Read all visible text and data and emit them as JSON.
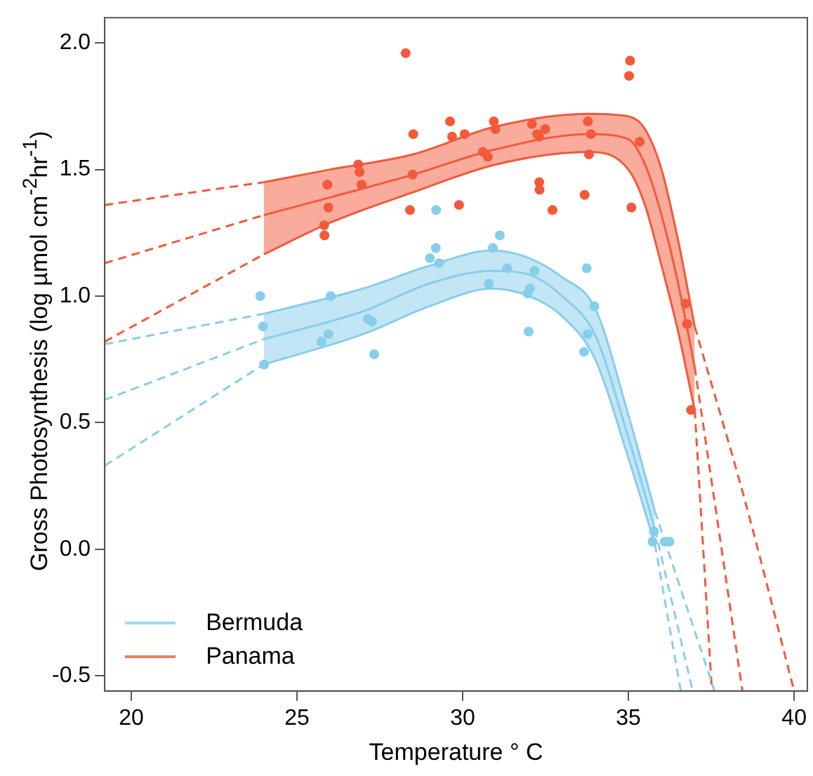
{
  "chart_data": {
    "type": "line",
    "xlabel": "Temperature ° C",
    "ylabel": "Gross Photosynthesis (log µmol cm$^{-2}$hr$^{-1}$)",
    "xlim": [
      19.2,
      40.4
    ],
    "ylim": [
      -0.56,
      2.1
    ],
    "xticks": [
      20,
      25,
      30,
      35,
      40
    ],
    "yticks": [
      -0.5,
      {
        "value": 0,
        "label": "0.0"
      },
      0.5,
      {
        "value": 1,
        "label": "1.0"
      },
      1.5,
      {
        "value": 2,
        "label": "2.0"
      }
    ],
    "grid": false,
    "legend": "bottom left",
    "series": [
      {
        "name": "Bermuda",
        "color": "#87ceeb",
        "line_style": "solid",
        "x": [
          24,
          27,
          29,
          30.9,
          32,
          33,
          34,
          35,
          35.8
        ],
        "values": [
          0.83,
          0.94,
          1.05,
          1.1,
          1.085,
          1.0,
          0.845,
          0.44,
          0.08
        ],
        "lower": [
          0.73,
          0.85,
          0.96,
          1.03,
          1.0,
          0.92,
          0.75,
          0.36,
          0.02
        ],
        "upper": [
          0.93,
          1.03,
          1.12,
          1.18,
          1.15,
          1.075,
          0.95,
          0.53,
          0.15
        ]
      },
      {
        "color": "#87ceeb",
        "line_style": "solid",
        "x": [
          24,
          27,
          29,
          30.9,
          32,
          33,
          34,
          35,
          35.8
        ],
        "values": [
          0.73,
          0.85,
          0.96,
          1.03,
          1.0,
          0.92,
          0.75,
          0.36,
          0.02
        ]
      },
      {
        "color": "#87ceeb",
        "line_style": "solid",
        "x": [
          24,
          27,
          29,
          30.9,
          32,
          33,
          34,
          35,
          35.8
        ],
        "values": [
          0.93,
          1.03,
          1.12,
          1.18,
          1.15,
          1.075,
          0.95,
          0.53,
          0.15
        ]
      },
      {
        "type": "line",
        "color": "#87ceeb",
        "line_style": "dashed",
        "x": [
          19.2,
          24
        ],
        "values": [
          0.81,
          0.93
        ]
      },
      {
        "type": "line",
        "color": "#87ceeb",
        "line_style": "dashed",
        "x": [
          19.2,
          24
        ],
        "values": [
          0.59,
          0.83
        ]
      },
      {
        "type": "line",
        "color": "#87ceeb",
        "line_style": "dashed",
        "x": [
          19.2,
          24
        ],
        "values": [
          0.33,
          0.73
        ]
      },
      {
        "type": "line",
        "color": "#87ceeb",
        "line_style": "dashed",
        "x": [
          35.8,
          37.6
        ],
        "values": [
          0.15,
          -0.56
        ]
      },
      {
        "type": "line",
        "color": "#87ceeb",
        "line_style": "dashed",
        "x": [
          35.8,
          36.94
        ],
        "values": [
          0.08,
          -0.56
        ]
      },
      {
        "type": "line",
        "color": "#87ceeb",
        "line_style": "dashed",
        "x": [
          35.8,
          36.58
        ],
        "values": [
          0.02,
          -0.56
        ]
      },
      {
        "type": "scatter",
        "color": "#87ceeb",
        "marker": "circle",
        "x": [
          23.89,
          23.98,
          24.01,
          26.02,
          25.74,
          25.95,
          27.14,
          27.26,
          27.33,
          29.2,
          29.19,
          29.01,
          29.29,
          31.12,
          30.91,
          31.34,
          32.17,
          30.79,
          32.03,
          31.96,
          31.99,
          33.74,
          33.97,
          33.77,
          33.66,
          35.77,
          35.73,
          36.1,
          36.24
        ],
        "values": [
          1.0,
          0.88,
          0.73,
          1.0,
          0.82,
          0.85,
          0.91,
          0.9,
          0.77,
          1.34,
          1.19,
          1.15,
          1.13,
          1.24,
          1.19,
          1.11,
          1.1,
          1.05,
          1.03,
          1.01,
          0.86,
          1.11,
          0.96,
          0.85,
          0.78,
          0.07,
          0.03,
          0.03,
          0.03
        ]
      },
      {
        "name": "Panama",
        "color": "#f4593a",
        "line_style": "solid",
        "x": [
          24,
          26,
          28.5,
          31,
          33.8,
          35,
          35.5,
          36,
          36.5,
          37.0
        ],
        "values": [
          1.32,
          1.39,
          1.48,
          1.58,
          1.64,
          1.62,
          1.52,
          1.32,
          1.05,
          0.72
        ],
        "lower": [
          1.165,
          1.29,
          1.41,
          1.52,
          1.57,
          1.5,
          1.36,
          1.12,
          0.86,
          0.55
        ],
        "upper": [
          1.45,
          1.5,
          1.56,
          1.67,
          1.72,
          1.71,
          1.66,
          1.5,
          1.22,
          0.88
        ]
      },
      {
        "color": "#f4593a",
        "line_style": "solid",
        "x": [
          24,
          26,
          28.5,
          31,
          33.8,
          35,
          35.5,
          36,
          36.5,
          37.0
        ],
        "values": [
          1.165,
          1.29,
          1.41,
          1.52,
          1.57,
          1.5,
          1.36,
          1.12,
          0.86,
          0.55
        ]
      },
      {
        "color": "#f4593a",
        "line_style": "solid",
        "x": [
          24,
          26,
          28.5,
          31,
          33.8,
          35,
          35.5,
          36,
          36.5,
          37.0
        ],
        "values": [
          1.45,
          1.5,
          1.56,
          1.67,
          1.72,
          1.71,
          1.66,
          1.5,
          1.22,
          0.88
        ]
      },
      {
        "type": "line",
        "color": "#f4593a",
        "line_style": "dashed",
        "x": [
          19.2,
          24
        ],
        "values": [
          1.36,
          1.45
        ]
      },
      {
        "type": "line",
        "color": "#f4593a",
        "line_style": "dashed",
        "x": [
          19.2,
          24
        ],
        "values": [
          1.13,
          1.32
        ]
      },
      {
        "type": "line",
        "color": "#f4593a",
        "line_style": "dashed",
        "x": [
          19.2,
          24
        ],
        "values": [
          0.82,
          1.165
        ]
      },
      {
        "type": "line",
        "color": "#f4593a",
        "line_style": "dashed",
        "x": [
          37.0,
          38.5,
          40.0
        ],
        "values": [
          0.88,
          0.2,
          -0.56
        ]
      },
      {
        "type": "line",
        "color": "#f4593a",
        "line_style": "dashed",
        "x": [
          37.0,
          37.7,
          38.44
        ],
        "values": [
          0.72,
          0.1,
          -0.56
        ]
      },
      {
        "type": "line",
        "color": "#f4593a",
        "line_style": "dashed",
        "x": [
          37.0,
          37.52
        ],
        "values": [
          0.55,
          -0.56
        ]
      },
      {
        "type": "scatter",
        "color": "#f4593a",
        "marker": "circle",
        "x": [
          28.28,
          35.05,
          35.02,
          29.62,
          30.94,
          33.78,
          28.51,
          29.68,
          30.06,
          30.99,
          32.09,
          32.49,
          32.25,
          32.31,
          33.87,
          35.34,
          30.61,
          30.76,
          33.81,
          26.85,
          26.89,
          26.95,
          28.49,
          25.92,
          32.31,
          32.32,
          33.68,
          25.95,
          28.41,
          29.89,
          32.71,
          35.09,
          25.82,
          25.83,
          36.72,
          36.77,
          36.89
        ],
        "values": [
          1.96,
          1.93,
          1.87,
          1.69,
          1.69,
          1.69,
          1.64,
          1.63,
          1.64,
          1.66,
          1.68,
          1.66,
          1.64,
          1.63,
          1.64,
          1.61,
          1.57,
          1.55,
          1.56,
          1.52,
          1.49,
          1.44,
          1.48,
          1.44,
          1.45,
          1.42,
          1.4,
          1.35,
          1.34,
          1.36,
          1.34,
          1.35,
          1.28,
          1.24,
          0.97,
          0.89,
          0.55
        ]
      }
    ]
  }
}
